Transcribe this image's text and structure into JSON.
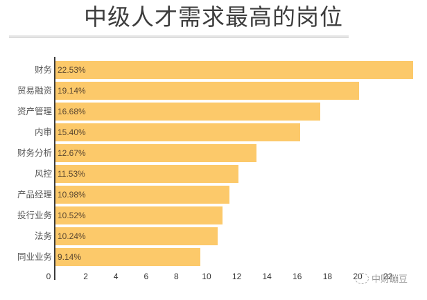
{
  "chart_data": {
    "type": "bar",
    "orientation": "horizontal",
    "title": "中级人才需求最高的岗位",
    "xlabel": "",
    "ylabel": "",
    "xlim": [
      0,
      22.5
    ],
    "grid": false,
    "legend": null,
    "categories": [
      "财务",
      "贸易融资",
      "资产管理",
      "内审",
      "财务分析",
      "风控",
      "产品经理",
      "投行业务",
      "法务",
      "同业业务"
    ],
    "values": [
      22.53,
      19.14,
      16.68,
      15.4,
      12.67,
      11.53,
      10.98,
      10.52,
      10.24,
      9.14
    ],
    "value_labels": [
      "22.53%",
      "19.14%",
      "16.68%",
      "15.40%",
      "12.67%",
      "11.53%",
      "10.98%",
      "10.52%",
      "10.24%",
      "9.14%"
    ],
    "x_ticks": [
      "0",
      "2",
      "4",
      "6",
      "8",
      "10",
      "12",
      "14",
      "16",
      "18",
      "20",
      "22"
    ],
    "bar_color": "#fcc96a"
  },
  "title": "中级人才需求最高的岗位",
  "watermark": {
    "text": "中财蹦豆",
    "icon": "wechat-icon"
  }
}
